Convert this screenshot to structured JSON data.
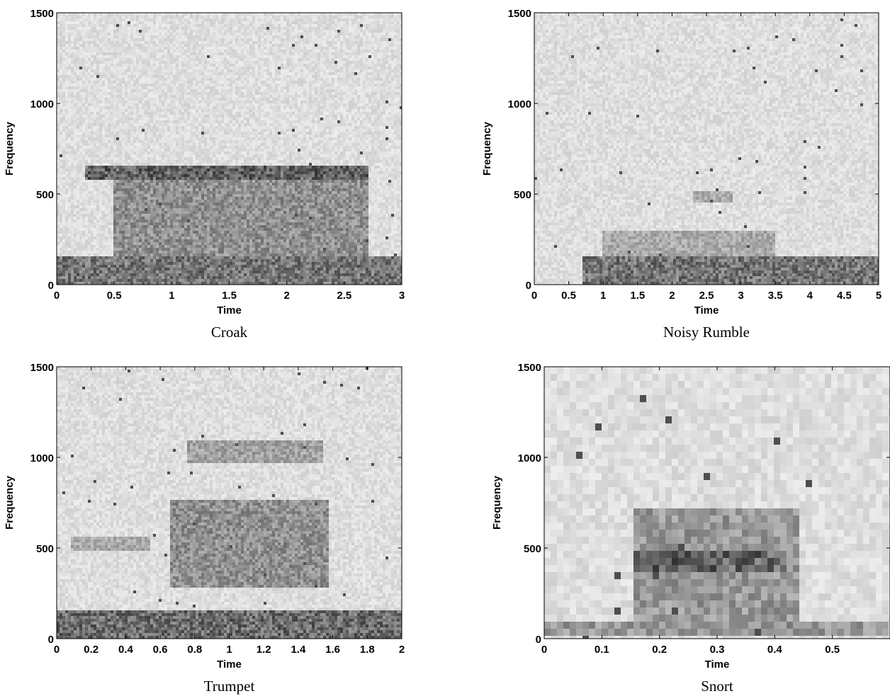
{
  "chart_data": [
    {
      "type": "heatmap",
      "caption": "Croak",
      "xlabel": "Time",
      "ylabel": "Frequency",
      "xlim": [
        0,
        3
      ],
      "ylim": [
        0,
        1500
      ],
      "xticks": [
        0,
        0.5,
        1,
        1.5,
        2,
        2.5,
        3
      ],
      "xtick_labels": [
        "0",
        "0.5",
        "1",
        "1.5",
        "2",
        "2.5",
        "3"
      ],
      "yticks": [
        0,
        500,
        1000,
        1500
      ],
      "ytick_labels": [
        "0",
        "500",
        "1000",
        "1500"
      ],
      "colormap": "grayscale-inverted",
      "energy_regions": [
        {
          "t": [
            0,
            3.0
          ],
          "f": [
            0,
            150
          ],
          "intensity": 0.75
        },
        {
          "t": [
            0.5,
            2.7
          ],
          "f": [
            150,
            650
          ],
          "intensity": 0.6
        },
        {
          "t": [
            0.25,
            2.7
          ],
          "f": [
            580,
            660
          ],
          "intensity": 0.85
        }
      ]
    },
    {
      "type": "heatmap",
      "caption": "Noisy Rumble",
      "xlabel": "Time",
      "ylabel": "Frequency",
      "xlim": [
        0,
        5
      ],
      "ylim": [
        0,
        1500
      ],
      "xticks": [
        0,
        0.5,
        1,
        1.5,
        2,
        2.5,
        3,
        3.5,
        4,
        4.5,
        5
      ],
      "xtick_labels": [
        "0",
        "0.5",
        "1",
        "1.5",
        "2",
        "2.5",
        "3",
        "3.5",
        "4",
        "4.5",
        "5"
      ],
      "yticks": [
        0,
        500,
        1000,
        1500
      ],
      "ytick_labels": [
        "0",
        "500",
        "1000",
        "1500"
      ],
      "colormap": "grayscale-inverted",
      "energy_regions": [
        {
          "t": [
            0.7,
            5.0
          ],
          "f": [
            0,
            160
          ],
          "intensity": 0.75
        },
        {
          "t": [
            1.0,
            3.5
          ],
          "f": [
            160,
            300
          ],
          "intensity": 0.45
        },
        {
          "t": [
            2.3,
            2.9
          ],
          "f": [
            460,
            510
          ],
          "intensity": 0.45
        }
      ]
    },
    {
      "type": "heatmap",
      "caption": "Trumpet",
      "xlabel": "Time",
      "ylabel": "Frequency",
      "xlim": [
        0,
        2
      ],
      "ylim": [
        0,
        1500
      ],
      "xticks": [
        0,
        0.2,
        0.4,
        0.6,
        0.8,
        1,
        1.2,
        1.4,
        1.6,
        1.8,
        2
      ],
      "xtick_labels": [
        "0",
        "0.2",
        "0.4",
        "0.6",
        "0.8",
        "1",
        "1.2",
        "1.4",
        "1.6",
        "1.8",
        "2"
      ],
      "yticks": [
        0,
        500,
        1000,
        1500
      ],
      "ytick_labels": [
        "0",
        "500",
        "1000",
        "1500"
      ],
      "colormap": "grayscale-inverted",
      "energy_regions": [
        {
          "t": [
            0,
            2.0
          ],
          "f": [
            0,
            150
          ],
          "intensity": 0.8
        },
        {
          "t": [
            0.65,
            1.58
          ],
          "f": [
            280,
            770
          ],
          "intensity": 0.6
        },
        {
          "t": [
            0.75,
            1.55
          ],
          "f": [
            970,
            1100
          ],
          "intensity": 0.5
        },
        {
          "t": [
            0.08,
            0.55
          ],
          "f": [
            490,
            570
          ],
          "intensity": 0.45
        }
      ]
    },
    {
      "type": "heatmap",
      "caption": "Snort",
      "xlabel": "Time",
      "ylabel": "Frequency",
      "xlim": [
        0,
        0.6
      ],
      "ylim": [
        0,
        1500
      ],
      "xticks": [
        0,
        0.1,
        0.2,
        0.3,
        0.4,
        0.5
      ],
      "xtick_labels": [
        "0",
        "0.1",
        "0.2",
        "0.3",
        "0.4",
        "0.5"
      ],
      "yticks": [
        0,
        500,
        1000,
        1500
      ],
      "ytick_labels": [
        "0",
        "500",
        "1000",
        "1500"
      ],
      "colormap": "grayscale-inverted",
      "energy_regions": [
        {
          "t": [
            0,
            0.6
          ],
          "f": [
            0,
            80
          ],
          "intensity": 0.55
        },
        {
          "t": [
            0.15,
            0.44
          ],
          "f": [
            80,
            720
          ],
          "intensity": 0.55
        },
        {
          "t": [
            0.15,
            0.42
          ],
          "f": [
            380,
            500
          ],
          "intensity": 0.85
        }
      ]
    }
  ]
}
